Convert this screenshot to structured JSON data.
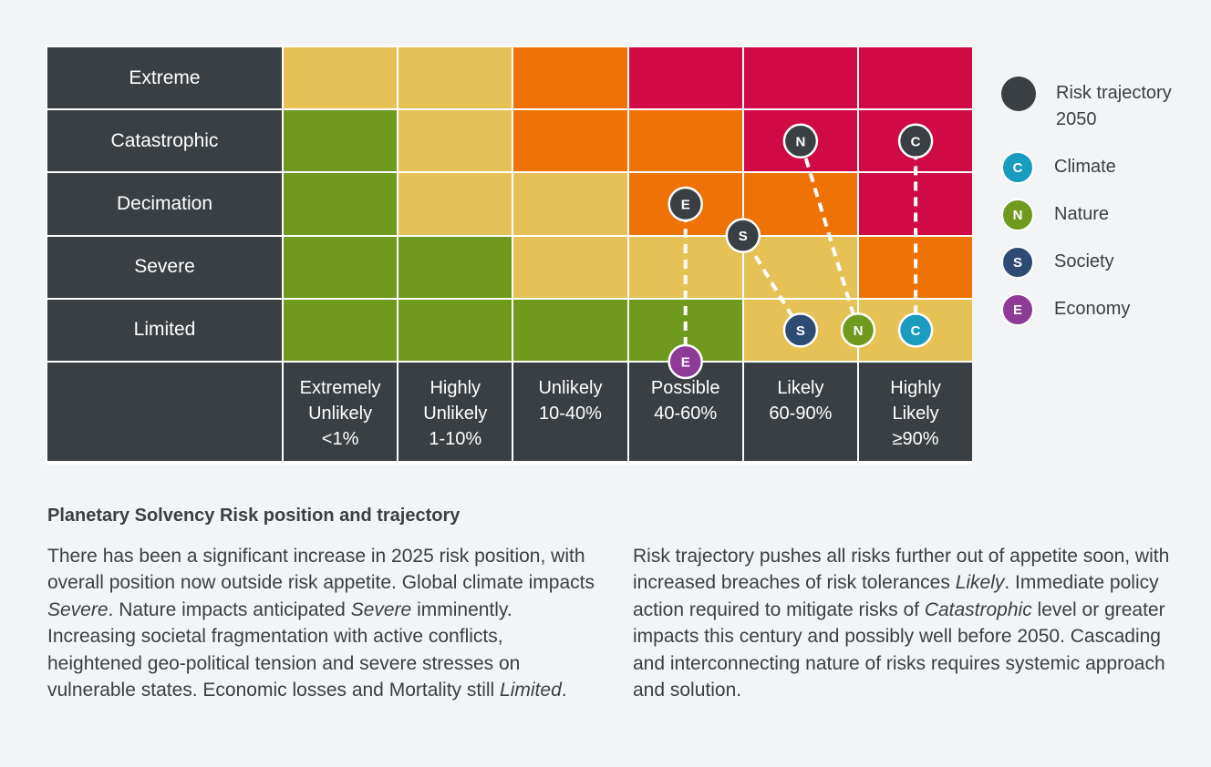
{
  "chart_data": {
    "type": "heatmap",
    "rows": [
      "Extreme",
      "Catastrophic",
      "Decimation",
      "Severe",
      "Limited"
    ],
    "columns": [
      [
        "Extremely",
        "Unlikely",
        "<1%"
      ],
      [
        "Highly",
        "Unlikely",
        "1-10%"
      ],
      [
        "Unlikely",
        "10-40%"
      ],
      [
        "Possible",
        "40-60%"
      ],
      [
        "Likely",
        "60-90%"
      ],
      [
        "Highly",
        "Likely",
        "≥90%"
      ]
    ],
    "palette": {
      "green": "#6f9a1e",
      "yellow": "#e5c156",
      "orange": "#ef7206",
      "red": "#d00a45",
      "label_bg": "#3a3f43",
      "grid": "#ffffff"
    },
    "cells": [
      [
        "yellow",
        "yellow",
        "orange",
        "red",
        "red",
        "red"
      ],
      [
        "green",
        "yellow",
        "orange",
        "orange",
        "red",
        "red"
      ],
      [
        "green",
        "yellow",
        "yellow",
        "orange",
        "orange",
        "red"
      ],
      [
        "green",
        "green",
        "yellow",
        "yellow",
        "yellow",
        "orange"
      ],
      [
        "green",
        "green",
        "green",
        "green",
        "yellow",
        "yellow"
      ]
    ],
    "trajectories": [
      {
        "letter": "E",
        "name": "Economy",
        "color": "#8e3a97",
        "current": {
          "likelihood": 3.5,
          "impact": 0
        },
        "trajectory_2050": {
          "likelihood": 3.5,
          "impact": 2.5
        }
      },
      {
        "letter": "S",
        "name": "Society",
        "color": "#2e4b74",
        "current": {
          "likelihood": 4.5,
          "impact": 0.5
        },
        "trajectory_2050": {
          "likelihood": 4.0,
          "impact": 2.0
        }
      },
      {
        "letter": "N",
        "name": "Nature",
        "color": "#6f9a1e",
        "current": {
          "likelihood": 5.0,
          "impact": 0.5
        },
        "trajectory_2050": {
          "likelihood": 4.5,
          "impact": 3.5
        }
      },
      {
        "letter": "C",
        "name": "Climate",
        "color": "#1a9bc0",
        "current": {
          "likelihood": 5.5,
          "impact": 0.5
        },
        "trajectory_2050": {
          "likelihood": 5.5,
          "impact": 3.5
        }
      }
    ]
  },
  "legend": {
    "items": [
      {
        "key": "trajectory",
        "label": "Risk trajectory 2050",
        "letter": "",
        "color": "#3a3f43"
      },
      {
        "key": "climate",
        "label": "Climate",
        "letter": "C",
        "color": "#1a9bc0"
      },
      {
        "key": "nature",
        "label": "Nature",
        "letter": "N",
        "color": "#6f9a1e"
      },
      {
        "key": "society",
        "label": "Society",
        "letter": "S",
        "color": "#2e4b74"
      },
      {
        "key": "economy",
        "label": "Economy",
        "letter": "E",
        "color": "#8e3a97"
      }
    ]
  },
  "caption": {
    "title": "Planetary Solvency Risk position and trajectory",
    "left": [
      {
        "t": "There has been a significant increase in 2025 risk position, with overall position now outside risk appetite. Global climate impacts ",
        "i": false
      },
      {
        "t": "Severe",
        "i": true
      },
      {
        "t": ". Nature impacts anticipated ",
        "i": false
      },
      {
        "t": "Severe",
        "i": true
      },
      {
        "t": " imminently. Increasing societal fragmentation with active conflicts, heightened geo-political tension and severe stresses on vulnerable states. Economic losses and Mortality still ",
        "i": false
      },
      {
        "t": "Limited",
        "i": true
      },
      {
        "t": ".",
        "i": false
      }
    ],
    "right": [
      {
        "t": "Risk trajectory pushes all risks further out of appetite soon, with increased breaches of risk tolerances ",
        "i": false
      },
      {
        "t": "Likely",
        "i": true
      },
      {
        "t": ". Immediate policy action required to mitigate risks of ",
        "i": false
      },
      {
        "t": "Catastrophic",
        "i": true
      },
      {
        "t": " level or greater impacts this century and possibly well before 2050. Cascading and interconnecting nature of risks requires systemic approach and solution.",
        "i": false
      }
    ]
  }
}
